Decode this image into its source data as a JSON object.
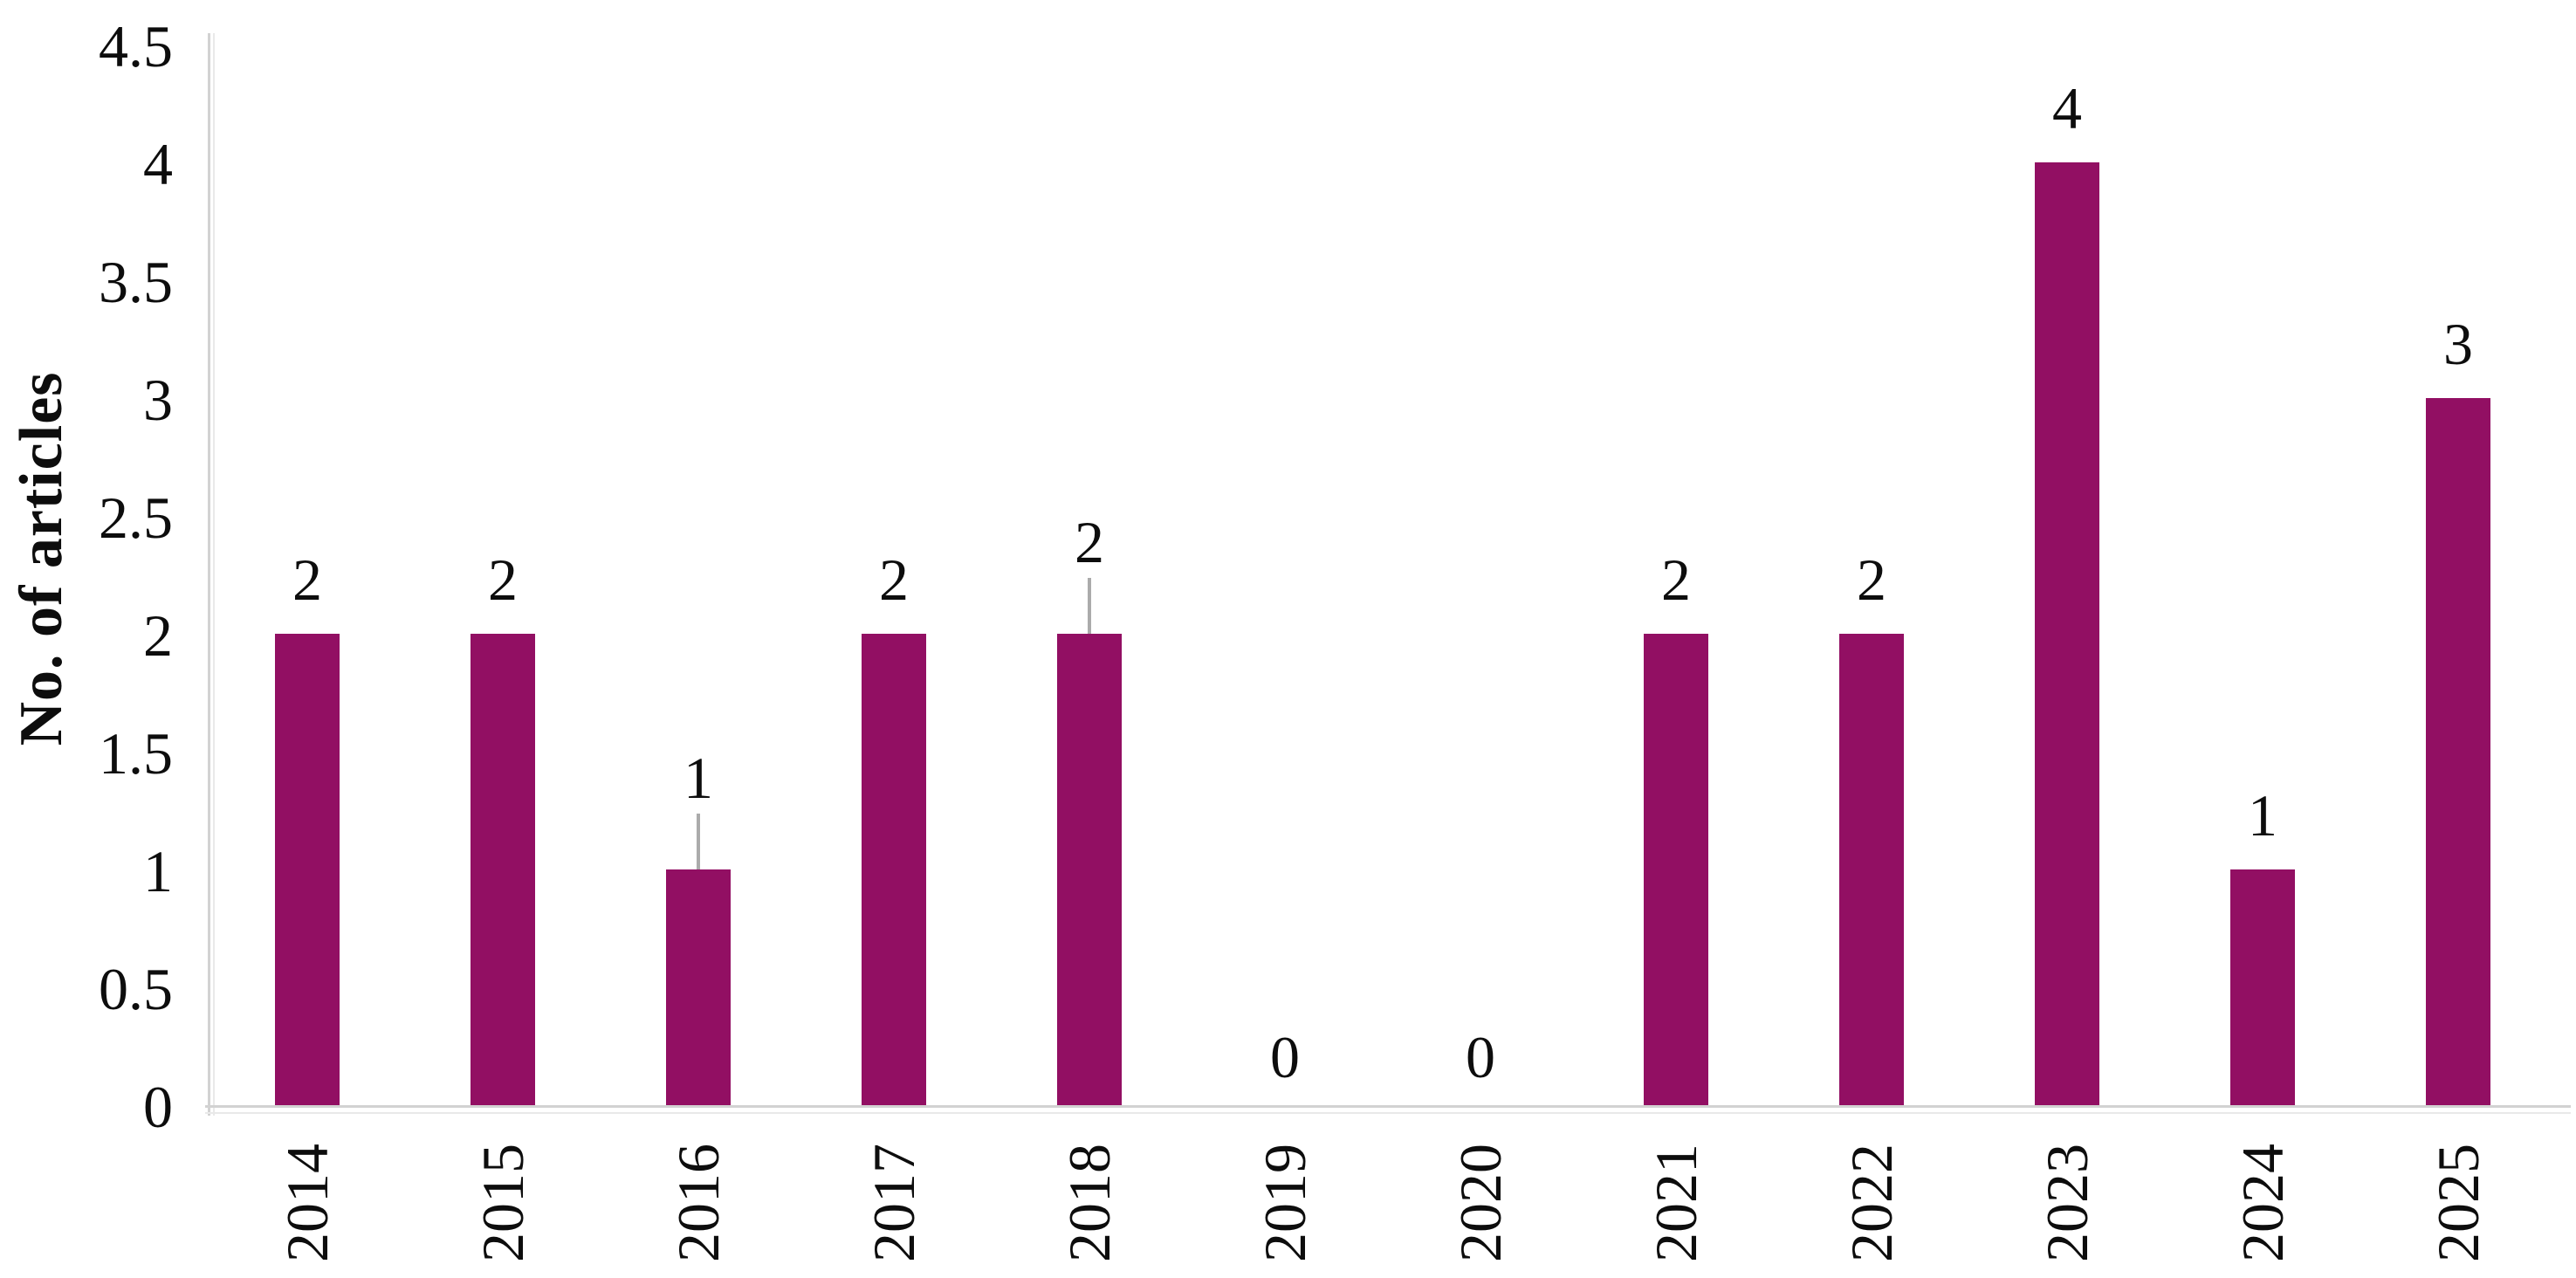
{
  "chart_data": {
    "type": "bar",
    "title": "",
    "ylabel": "No. of articles",
    "xlabel": "",
    "categories": [
      "2014",
      "2015",
      "2016",
      "2017",
      "2018",
      "2019",
      "2020",
      "2021",
      "2022",
      "2023",
      "2024",
      "2025"
    ],
    "values": [
      2,
      2,
      1,
      2,
      2,
      0,
      0,
      2,
      2,
      4,
      1,
      3
    ],
    "data_labels": [
      "2",
      "2",
      "1",
      "2",
      "2",
      "0",
      "0",
      "2",
      "2",
      "4",
      "1",
      "3"
    ],
    "label_leader_lines": [
      false,
      false,
      true,
      false,
      true,
      false,
      false,
      false,
      false,
      false,
      false,
      false
    ],
    "yticks": [
      0,
      0.5,
      1,
      1.5,
      2,
      2.5,
      3,
      3.5,
      4,
      4.5
    ],
    "ytick_labels": [
      "0",
      "0.5",
      "1",
      "1.5",
      "2",
      "2.5",
      "3",
      "3.5",
      "4",
      "4.5"
    ],
    "ylim": [
      0,
      4.5
    ],
    "grid": false,
    "legend": "none",
    "colors": {
      "bar": "#920F63",
      "axis_line": "#d2d2d2",
      "axis_line_secondary": "#e9e9e9",
      "leader_line": "#ababab",
      "text": "#0d0d0d",
      "background": "#ffffff"
    }
  }
}
